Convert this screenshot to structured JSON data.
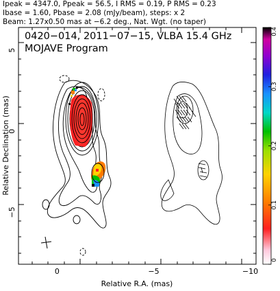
{
  "header": {
    "line1": "Ipeak = 4347.0, Ppeak = 56.5, I RMS = 0.19, P RMS = 0.23",
    "line2": "Ibase = 1.60, Pbase = 2.08 (mJy/beam), steps: x 2",
    "line3": "Beam: 1.27x0.50 mas at −6.2 deg., Nat. Wgt. (no taper)"
  },
  "inset": {
    "title": "0420−014, 2011−07−15, VLBA 15.4 GHz",
    "program": "MOJAVE Program"
  },
  "colorbar": {
    "ticks": [
      {
        "label": "0",
        "value": 0
      },
      {
        "label": "0.1",
        "value": 0.1
      },
      {
        "label": "0.2",
        "value": 0.2
      },
      {
        "label": "0.3",
        "value": 0.3
      },
      {
        "label": "0.4",
        "value": 0.4
      }
    ],
    "range": [
      0,
      0.4
    ]
  },
  "chart_data": {
    "type": "heatmap",
    "xlabel": "Relative R.A. (mas)",
    "ylabel": "Relative Declination (mas)",
    "xlim": [
      2,
      -10.3
    ],
    "ylim": [
      -8.2,
      6.4
    ],
    "x_ticks": [
      {
        "label": "0",
        "value": 0
      },
      {
        "label": "−5",
        "value": -5
      },
      {
        "label": "−10",
        "value": -10
      }
    ],
    "y_ticks": [
      {
        "label": "5",
        "value": 5
      },
      {
        "label": "0",
        "value": 0
      },
      {
        "label": "−5",
        "value": -5
      }
    ],
    "colorbar_range": [
      0,
      0.4
    ],
    "panels": [
      "total intensity with fractional polarization colour",
      "polarized intensity with EVPA ticks"
    ]
  }
}
